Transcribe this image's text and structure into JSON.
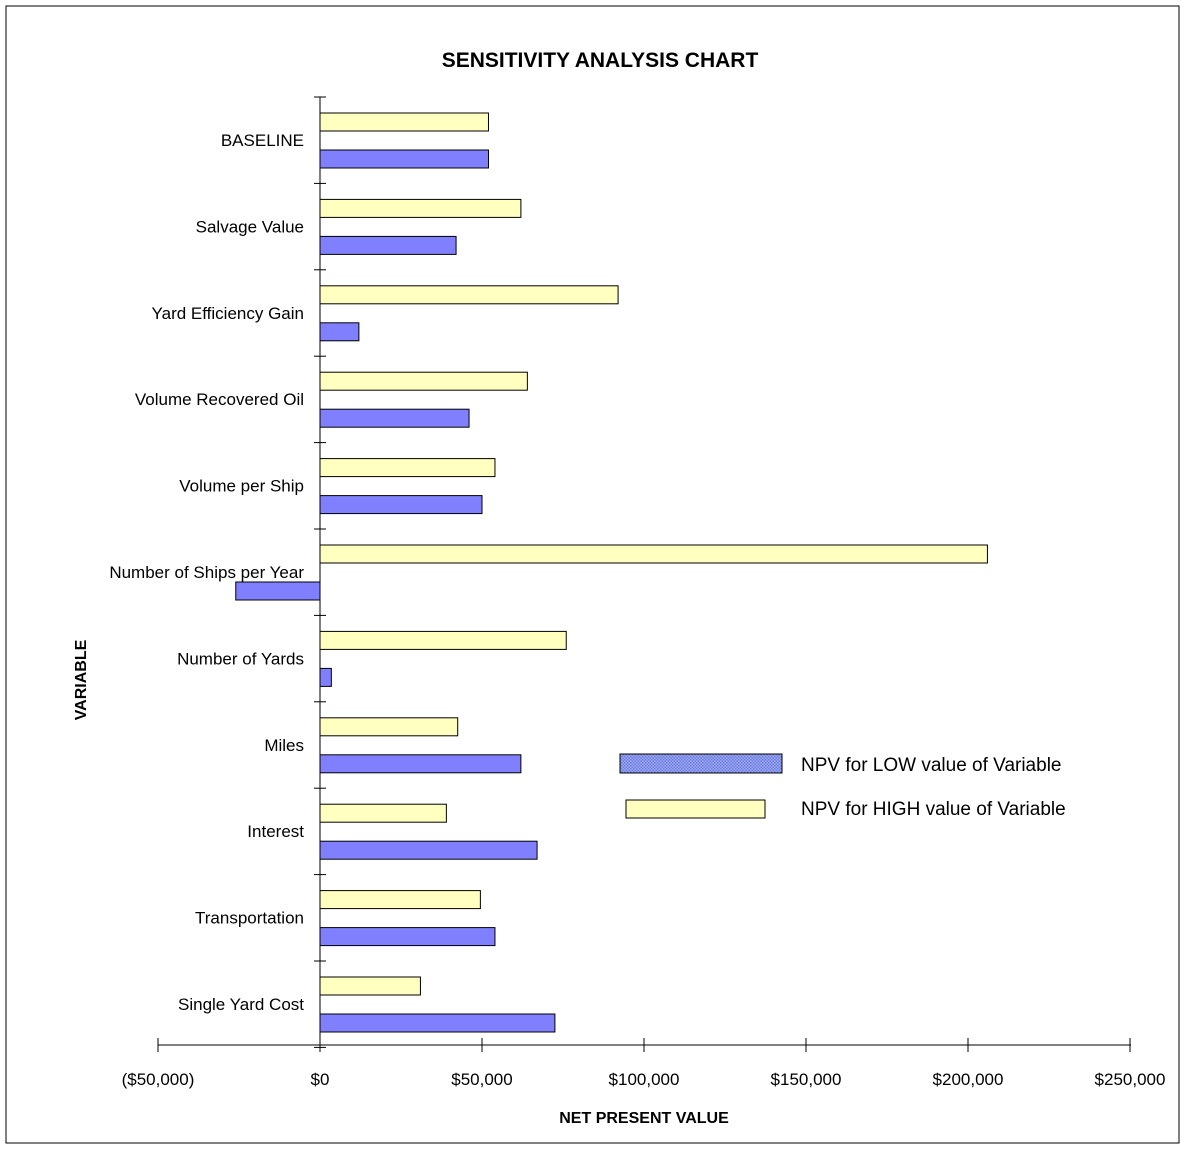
{
  "chart_data": {
    "type": "bar",
    "orientation": "horizontal",
    "title": "SENSITIVITY ANALYSIS CHART",
    "xlabel": "NET PRESENT VALUE",
    "ylabel": "VARIABLE",
    "xlim": [
      -50000,
      250000
    ],
    "x_ticks": [
      {
        "value": -50000,
        "label": "($50,000)"
      },
      {
        "value": 0,
        "label": "$0"
      },
      {
        "value": 50000,
        "label": "$50,000"
      },
      {
        "value": 100000,
        "label": "$100,000"
      },
      {
        "value": 150000,
        "label": "$150,000"
      },
      {
        "value": 200000,
        "label": "$200,000"
      },
      {
        "value": 250000,
        "label": "$250,000"
      }
    ],
    "categories": [
      "BASELINE",
      "Salvage Value",
      "Yard Efficiency Gain",
      "Volume Recovered Oil",
      "Volume per Ship",
      "Number of Ships per Year",
      "Number of Yards",
      "Miles",
      "Interest",
      "Transportation",
      "Single Yard Cost"
    ],
    "series": [
      {
        "name": "NPV for HIGH value of Variable",
        "color": "#ffffc0",
        "values": [
          52000,
          62000,
          92000,
          64000,
          54000,
          206000,
          76000,
          42500,
          39000,
          49500,
          31000
        ]
      },
      {
        "name": "NPV for LOW value of Variable",
        "color": "#8080ff",
        "values": [
          52000,
          42000,
          12000,
          46000,
          50000,
          -26000,
          3500,
          62000,
          67000,
          54000,
          72500
        ]
      }
    ],
    "legend_position": "right",
    "grid": false
  }
}
